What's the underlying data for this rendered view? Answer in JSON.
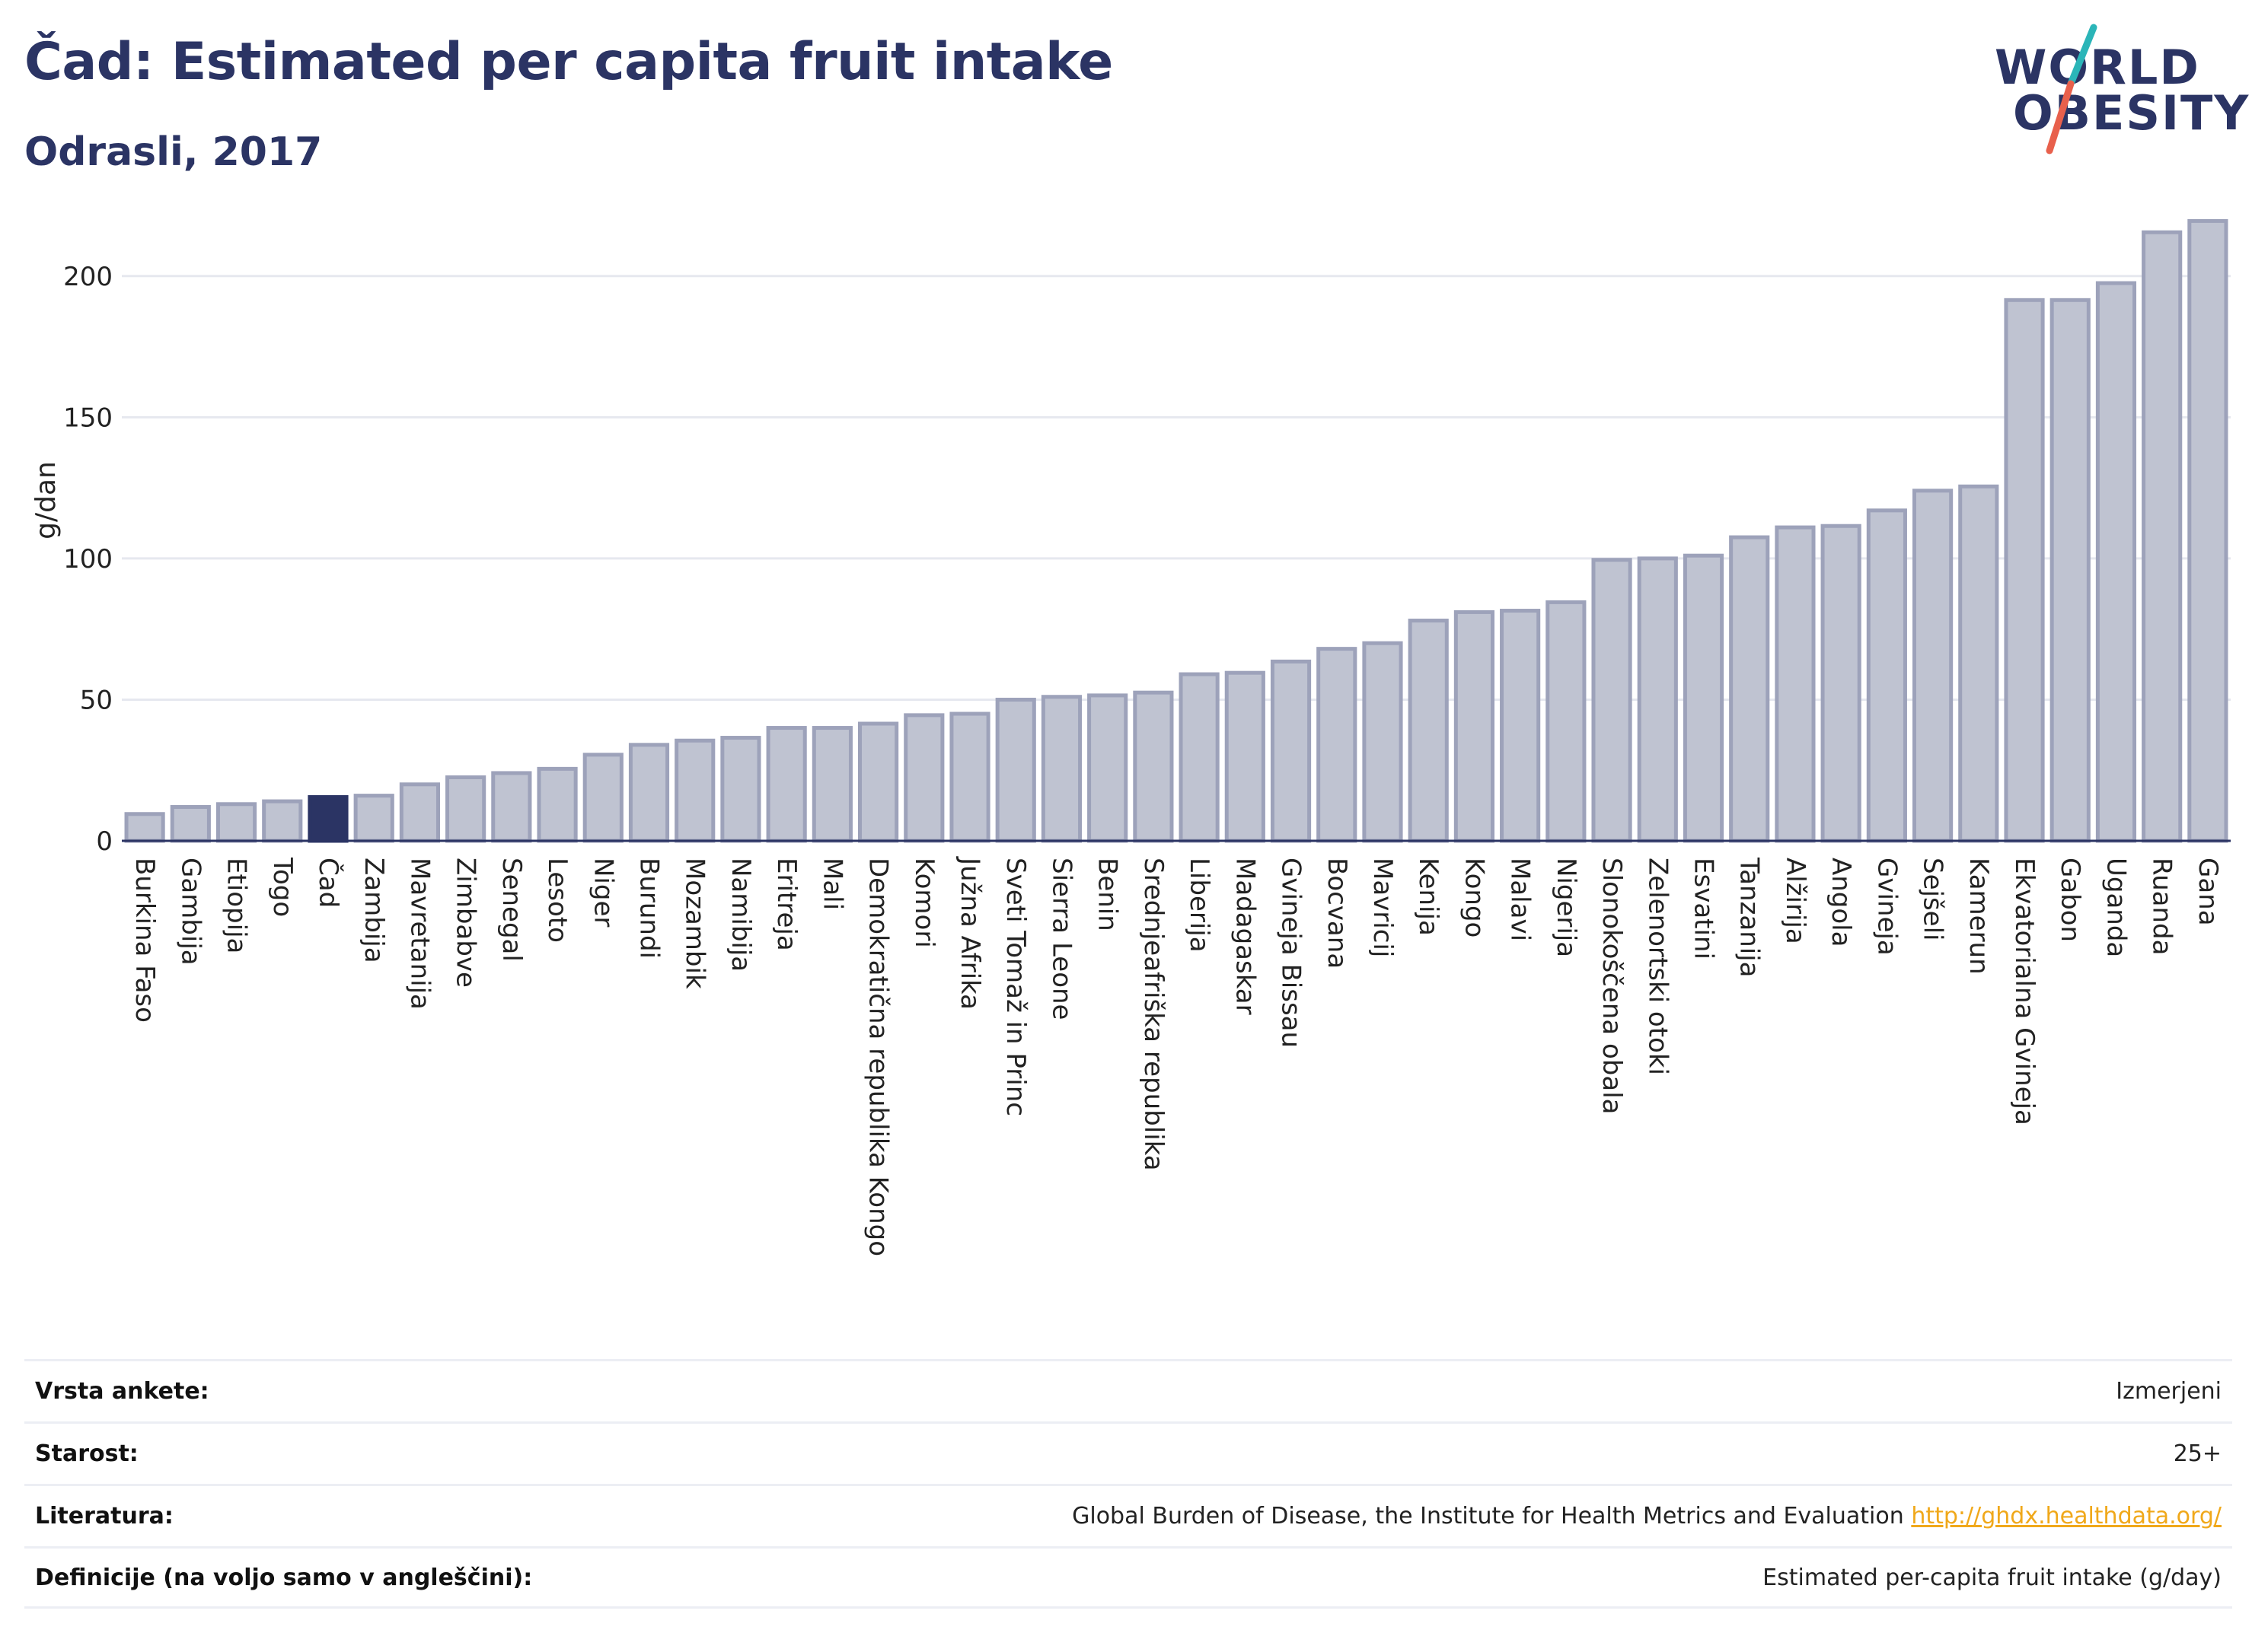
{
  "header": {
    "title": "Čad: Estimated per capita fruit intake",
    "subtitle": "Odrasli, 2017"
  },
  "logo": {
    "line1": "WORLD",
    "line2": "OBESITY",
    "colors": {
      "text": "#2b3464",
      "slash_top": "#2bb5b8",
      "slash_bottom": "#e8604c"
    }
  },
  "colors": {
    "bar_fill": "#bfc3d1",
    "bar_stroke": "#9da2ba",
    "highlight": "#2b3464",
    "grid": "#e6e8ef",
    "axis": "#2b3464"
  },
  "chart_data": {
    "type": "bar",
    "ylabel": "g/dan",
    "xlabel": "",
    "ylim": [
      0,
      225
    ],
    "yticks": [
      0,
      50,
      100,
      150,
      200
    ],
    "grid": true,
    "highlight": "Čad",
    "categories": [
      "Burkina Faso",
      "Gambija",
      "Etiopija",
      "Togo",
      "Čad",
      "Zambija",
      "Mavretanija",
      "Zimbabve",
      "Senegal",
      "Lesoto",
      "Niger",
      "Burundi",
      "Mozambik",
      "Namibija",
      "Eritreja",
      "Mali",
      "Demokratična republika Kongo",
      "Komori",
      "Južna Afrika",
      "Sveti Tomaž in Princ",
      "Sierra Leone",
      "Benin",
      "Srednjeafriška republika",
      "Liberija",
      "Madagaskar",
      "Gvineja Bissau",
      "Bocvana",
      "Mavricij",
      "Kenija",
      "Kongo",
      "Malavi",
      "Nigerija",
      "Slonokoščena obala",
      "Zelenortski otoki",
      "Esvatini",
      "Tanzanija",
      "Alžirija",
      "Angola",
      "Gvineja",
      "Sejšeli",
      "Kamerun",
      "Ekvatorialna Gvineja",
      "Gabon",
      "Uganda",
      "Ruanda",
      "Gana"
    ],
    "values": [
      9.5,
      12,
      13,
      14,
      15.5,
      16,
      20,
      22.5,
      24,
      25.5,
      30.5,
      34,
      35.5,
      36.5,
      40,
      40,
      41.5,
      44.5,
      45,
      50,
      51,
      51.5,
      52.5,
      59,
      59.5,
      63.5,
      68,
      70,
      78,
      81,
      81.5,
      84.5,
      99.5,
      100,
      101,
      107.5,
      111,
      111.5,
      117,
      124,
      125.5,
      191.5,
      191.5,
      197.5,
      215.5,
      219.5
    ]
  },
  "info_table": [
    {
      "key": "Vrsta ankete:",
      "value": "Izmerjeni"
    },
    {
      "key": "Starost:",
      "value": "25+"
    },
    {
      "key": "Literatura:",
      "value": "Global Burden of Disease, the Institute for Health Metrics and Evaluation",
      "link": "http://ghdx.healthdata.org/"
    },
    {
      "key": "Definicije (na voljo samo v angleščini):",
      "value": "Estimated per-capita fruit intake (g/day)"
    }
  ]
}
